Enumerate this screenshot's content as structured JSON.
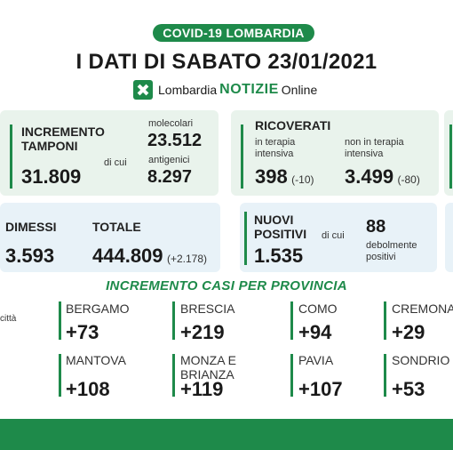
{
  "header": {
    "pill": "COVID-19 LOMBARDIA",
    "title": "I DATI DI SABATO 23/01/2021",
    "brand": {
      "name": "Lombardia",
      "notizie": "NOTIZIE",
      "online": "Online"
    }
  },
  "tamponi": {
    "label": "INCREMENTO TAMPONI",
    "total": "31.809",
    "di_cui": "di cui",
    "molecolari_label": "molecolari",
    "molecolari": "23.512",
    "antigenici_label": "antigenici",
    "antigenici": "8.297"
  },
  "ricoverati": {
    "label": "RICOVERATI",
    "ti_label": "in terapia intensiva",
    "ti_value": "398",
    "ti_delta": "(-10)",
    "nti_label": "non in terapia intensiva",
    "nti_value": "3.499",
    "nti_delta": "(-80)"
  },
  "dimessi": {
    "label": "DIMESSI",
    "value": "3.593",
    "totale_label": "TOTALE",
    "totale_value": "444.809",
    "totale_delta": "(+2.178)"
  },
  "positivi": {
    "label": "NUOVI POSITIVI",
    "value": "1.535",
    "di_cui": "di cui",
    "debolmente_value": "88",
    "debolmente_label": "debolmente positivi"
  },
  "province": {
    "title": "INCREMENTO CASI PER PROVINCIA",
    "citta_fragment": "città",
    "items": [
      {
        "name": "BERGAMO",
        "value": "+73"
      },
      {
        "name": "BRESCIA",
        "value": "+219"
      },
      {
        "name": "COMO",
        "value": "+94"
      },
      {
        "name": "CREMONA",
        "value": "+29"
      },
      {
        "name": "MANTOVA",
        "value": "+108"
      },
      {
        "name": "MONZA E BRIANZA",
        "value": "+119"
      },
      {
        "name": "PAVIA",
        "value": "+107"
      },
      {
        "name": "SONDRIO",
        "value": "+53"
      }
    ]
  }
}
